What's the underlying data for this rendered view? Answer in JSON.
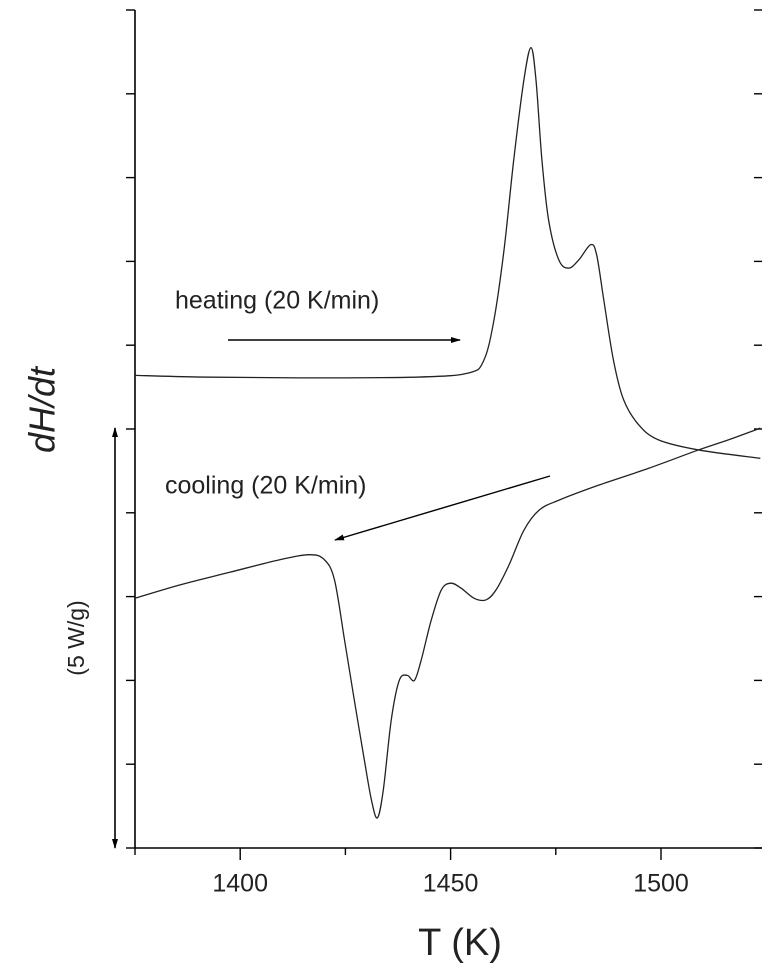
{
  "chart_data": {
    "type": "line",
    "x_label": "T (K)",
    "y_label": "dH/dt",
    "xlim": [
      1375,
      1524
    ],
    "xticks": [
      1400,
      1450,
      1500
    ],
    "x_minor_ticks": [
      1375,
      1425,
      1475
    ],
    "ylim": [
      0,
      10
    ],
    "yticks": [
      0,
      1,
      2,
      3,
      4,
      5,
      6,
      7,
      8,
      9,
      10
    ],
    "annotations": [
      "heating (20 K/min)",
      "cooling (20 K/min)",
      "(5 W/g)"
    ],
    "series": [
      {
        "color": "#222222",
        "x": [
          1375.0,
          1390.4,
          1414.1,
          1442.5,
          1454.4,
          1457.9,
          1460.3,
          1462.7,
          1465.0,
          1467.4,
          1469.1,
          1470.3,
          1471.7,
          1473.3,
          1475.7,
          1478.1,
          1480.5,
          1483.3,
          1484.7,
          1486.4,
          1488.7,
          1491.1,
          1494.7,
          1499.4,
          1508.9,
          1523.6
        ],
        "values": [
          5.64,
          5.62,
          5.61,
          5.62,
          5.67,
          5.82,
          6.3,
          7.14,
          8.21,
          9.16,
          9.55,
          9.16,
          8.21,
          7.49,
          7.02,
          6.92,
          7.02,
          7.2,
          7.08,
          6.54,
          5.82,
          5.35,
          5.05,
          4.87,
          4.75,
          4.65
        ]
      },
      {
        "color": "#222222",
        "x": [
          1375.0,
          1385.7,
          1397.5,
          1409.4,
          1416.5,
          1420.0,
          1422.4,
          1424.8,
          1427.1,
          1429.5,
          1431.2,
          1432.6,
          1434.0,
          1435.9,
          1437.8,
          1439.7,
          1441.4,
          1443.0,
          1445.4,
          1447.8,
          1450.1,
          1452.5,
          1455.6,
          1458.4,
          1460.8,
          1463.9,
          1467.4,
          1471.0,
          1475.7,
          1485.2,
          1497.0,
          1508.9,
          1516.0,
          1523.6
        ],
        "values": [
          2.98,
          3.14,
          3.29,
          3.44,
          3.5,
          3.44,
          3.2,
          2.48,
          1.77,
          1.05,
          0.57,
          0.36,
          0.69,
          1.53,
          2.0,
          2.06,
          2.0,
          2.24,
          2.72,
          3.08,
          3.16,
          3.1,
          2.98,
          2.96,
          3.08,
          3.38,
          3.79,
          4.03,
          4.15,
          4.33,
          4.53,
          4.75,
          4.87,
          5.01
        ]
      }
    ]
  }
}
